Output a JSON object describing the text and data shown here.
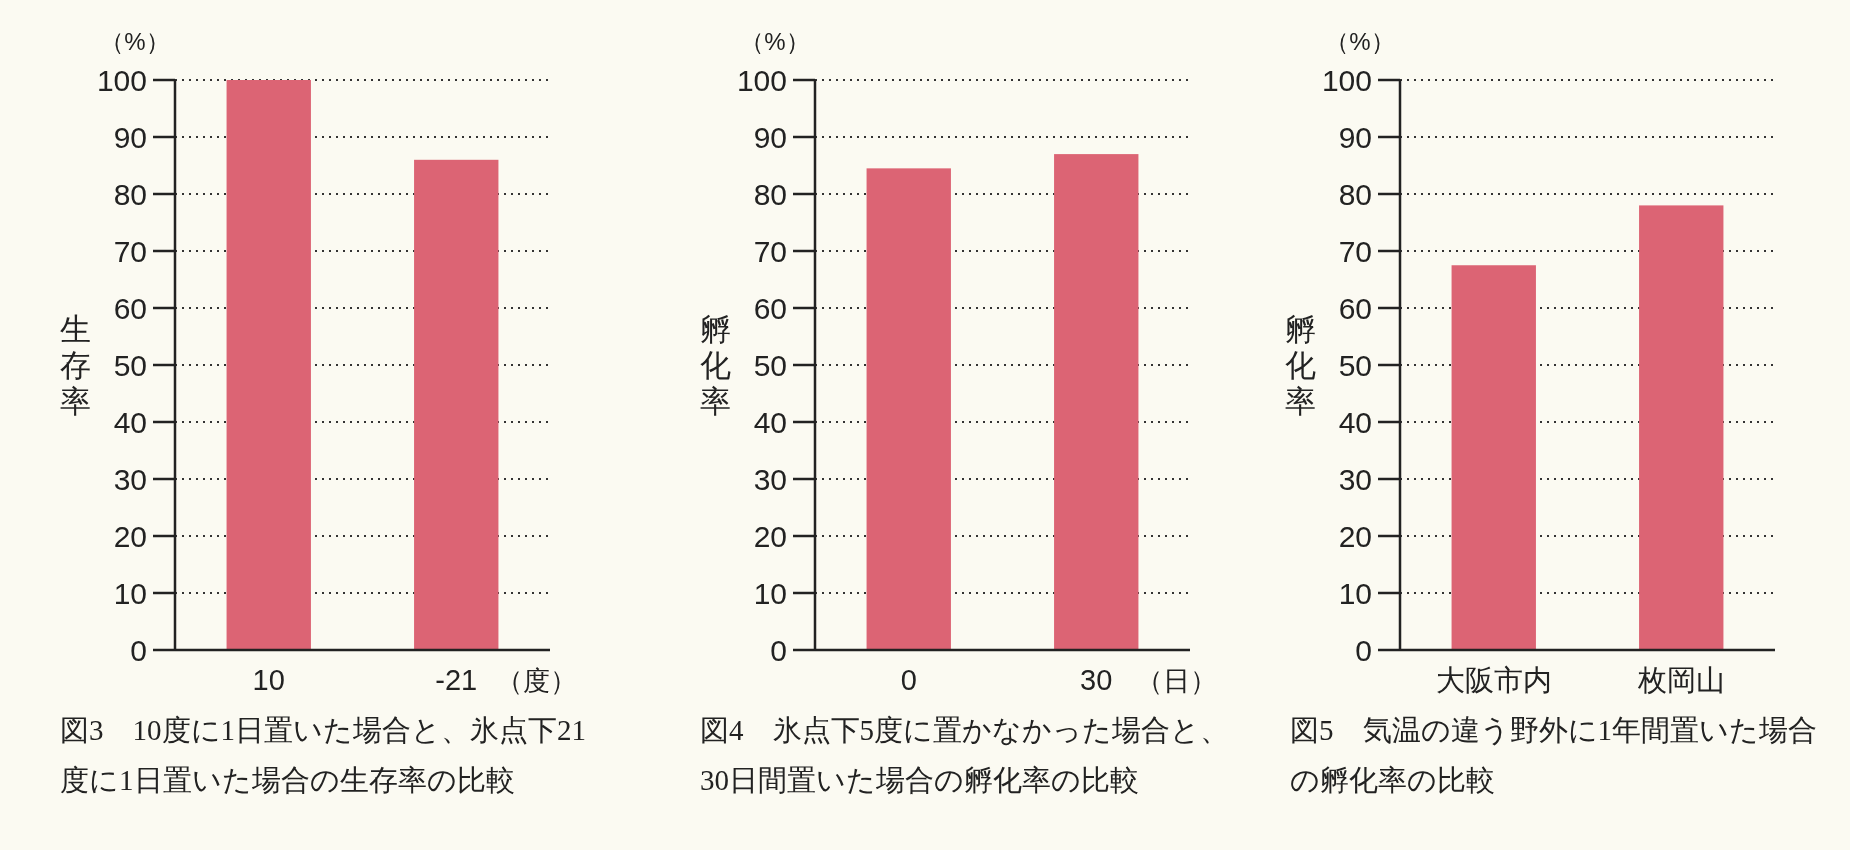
{
  "chart_data": [
    {
      "type": "bar",
      "title": "図3　10度に1日置いた場合と、氷点下21度に1日置いた場合の生存率の比較",
      "ylabel": "生存率",
      "xlabel": "（度）",
      "annotations": [
        "（%）"
      ],
      "categories": [
        "10",
        "-21"
      ],
      "values": [
        100,
        86
      ],
      "color": "#dc6474",
      "ylim": [
        0,
        100
      ],
      "yticks": [
        0,
        10,
        20,
        30,
        40,
        50,
        60,
        70,
        80,
        90,
        100
      ],
      "grid": "y"
    },
    {
      "type": "bar",
      "title": "図4　氷点下5度に置かなかった場合と、30日間置いた場合の孵化率の比較",
      "ylabel": "孵化率",
      "xlabel": "（日）",
      "annotations": [
        "（%）"
      ],
      "categories": [
        "0",
        "30"
      ],
      "values": [
        84.5,
        87
      ],
      "color": "#dc6474",
      "ylim": [
        0,
        100
      ],
      "yticks": [
        0,
        10,
        20,
        30,
        40,
        50,
        60,
        70,
        80,
        90,
        100
      ],
      "grid": "y"
    },
    {
      "type": "bar",
      "title": "図5　気温の違う野外に1年間置いた場合の孵化率の比較",
      "ylabel": "孵化率",
      "annotations": [
        "（%）"
      ],
      "categories": [
        "大阪市内",
        "枚岡山"
      ],
      "values": [
        67.5,
        78
      ],
      "color": "#dc6474",
      "ylim": [
        0,
        100
      ],
      "yticks": [
        0,
        10,
        20,
        30,
        40,
        50,
        60,
        70,
        80,
        90,
        100
      ],
      "grid": "y"
    }
  ]
}
